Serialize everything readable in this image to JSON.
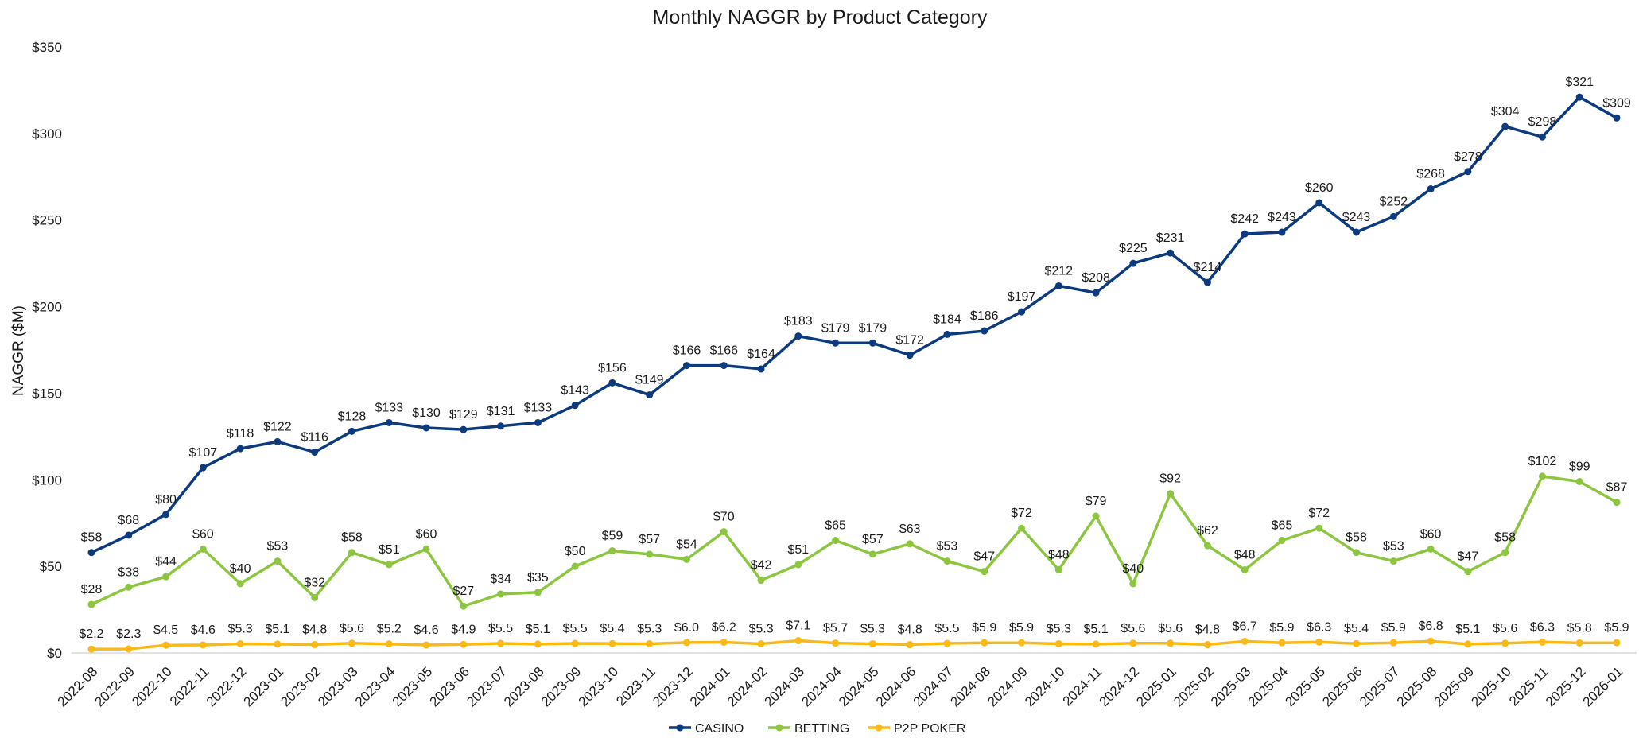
{
  "chart_data": {
    "type": "line",
    "title": "Monthly NAGGR by Product Category",
    "xlabel": "",
    "ylabel": "NAGGR ($M)",
    "ylim": [
      0,
      350
    ],
    "yticks": [
      0,
      50,
      100,
      150,
      200,
      250,
      300,
      350
    ],
    "ytick_labels": [
      "$0",
      "$50",
      "$100",
      "$150",
      "$200",
      "$250",
      "$300",
      "$350"
    ],
    "grid": false,
    "legend_position": "bottom-center",
    "categories": [
      "2022-08",
      "2022-09",
      "2022-10",
      "2022-11",
      "2022-12",
      "2023-01",
      "2023-02",
      "2023-03",
      "2023-04",
      "2023-05",
      "2023-06",
      "2023-07",
      "2023-08",
      "2023-09",
      "2023-10",
      "2023-11",
      "2023-12",
      "2024-01",
      "2024-02",
      "2024-03",
      "2024-04",
      "2024-05",
      "2024-06",
      "2024-07",
      "2024-08",
      "2024-09",
      "2024-10",
      "2024-11",
      "2024-12",
      "2025-01",
      "2025-02",
      "2025-03",
      "2025-04",
      "2025-05",
      "2025-06",
      "2025-07",
      "2025-08",
      "2025-09",
      "2025-10",
      "2025-11",
      "2025-12",
      "2026-01"
    ],
    "series": [
      {
        "name": "CASINO",
        "color": "#0b3a7e",
        "values": [
          58,
          68,
          80,
          107,
          118,
          122,
          116,
          128,
          133,
          130,
          129,
          131,
          133,
          143,
          156,
          149,
          166,
          166,
          164,
          183,
          179,
          179,
          172,
          184,
          186,
          197,
          212,
          208,
          225,
          231,
          214,
          242,
          243,
          260,
          243,
          252,
          268,
          278,
          304,
          298,
          321,
          309
        ],
        "labels": [
          "$58",
          "$68",
          "$80",
          "$107",
          "$118",
          "$122",
          "$116",
          "$128",
          "$133",
          "$130",
          "$129",
          "$131",
          "$133",
          "$143",
          "$156",
          "$149",
          "$166",
          "$166",
          "$164",
          "$183",
          "$179",
          "$179",
          "$172",
          "$184",
          "$186",
          "$197",
          "$212",
          "$208",
          "$225",
          "$231",
          "$214",
          "$242",
          "$243",
          "$260",
          "$243",
          "$252",
          "$268",
          "$278",
          "$304",
          "$298",
          "$321",
          "$309"
        ]
      },
      {
        "name": "BETTING",
        "color": "#8cc63f",
        "values": [
          28,
          38,
          44,
          60,
          40,
          53,
          32,
          58,
          51,
          60,
          27,
          34,
          35,
          50,
          59,
          57,
          54,
          70,
          42,
          51,
          65,
          57,
          63,
          53,
          47,
          72,
          48,
          79,
          40,
          92,
          62,
          48,
          65,
          72,
          58,
          53,
          60,
          47,
          58,
          102,
          99,
          87
        ],
        "labels": [
          "$28",
          "$38",
          "$44",
          "$60",
          "$40",
          "$53",
          "$32",
          "$58",
          "$51",
          "$60",
          "$27",
          "$34",
          "$35",
          "$50",
          "$59",
          "$57",
          "$54",
          "$70",
          "$42",
          "$51",
          "$65",
          "$57",
          "$63",
          "$53",
          "$47",
          "$72",
          "$48",
          "$79",
          "$40",
          "$92",
          "$62",
          "$48",
          "$65",
          "$72",
          "$58",
          "$53",
          "$60",
          "$47",
          "$58",
          "$102",
          "$99",
          "$87"
        ]
      },
      {
        "name": "P2P POKER",
        "color": "#fbb917",
        "values": [
          2.2,
          2.3,
          4.5,
          4.6,
          5.3,
          5.1,
          4.8,
          5.6,
          5.2,
          4.6,
          4.9,
          5.5,
          5.1,
          5.5,
          5.4,
          5.3,
          6.0,
          6.2,
          5.3,
          7.1,
          5.7,
          5.3,
          4.8,
          5.5,
          5.9,
          5.9,
          5.3,
          5.1,
          5.6,
          5.6,
          4.8,
          6.7,
          5.9,
          6.3,
          5.4,
          5.9,
          6.8,
          5.1,
          5.6,
          6.3,
          5.8,
          5.9
        ],
        "labels": [
          "$2.2",
          "$2.3",
          "$4.5",
          "$4.6",
          "$5.3",
          "$5.1",
          "$4.8",
          "$5.6",
          "$5.2",
          "$4.6",
          "$4.9",
          "$5.5",
          "$5.1",
          "$5.5",
          "$5.4",
          "$5.3",
          "$6.0",
          "$6.2",
          "$5.3",
          "$7.1",
          "$5.7",
          "$5.3",
          "$4.8",
          "$5.5",
          "$5.9",
          "$5.9",
          "$5.3",
          "$5.1",
          "$5.6",
          "$5.6",
          "$4.8",
          "$6.7",
          "$5.9",
          "$6.3",
          "$5.4",
          "$5.9",
          "$6.8",
          "$5.1",
          "$5.6",
          "$6.3",
          "$5.8",
          "$5.9"
        ]
      }
    ]
  }
}
